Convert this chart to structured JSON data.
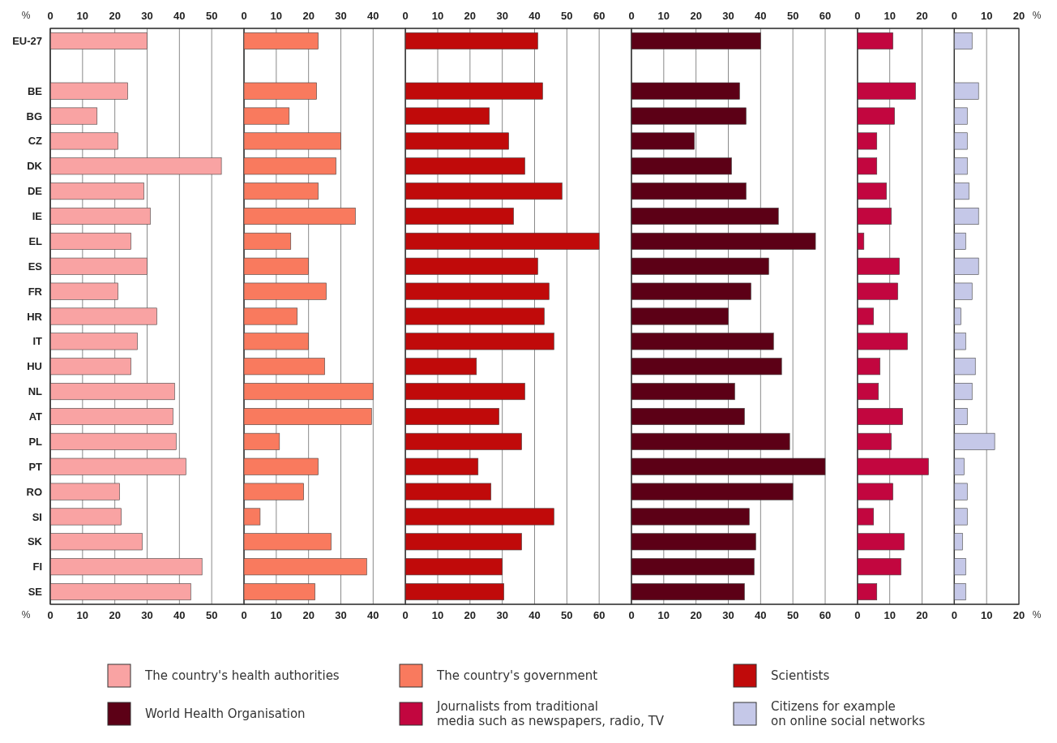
{
  "chart_data": [
    {
      "type": "bar",
      "orientation": "horizontal",
      "categories": [
        "EU-27",
        null,
        "BE",
        "BG",
        "CZ",
        "DK",
        "DE",
        "IE",
        "EL",
        "ES",
        "FR",
        "HR",
        "IT",
        "HU",
        "NL",
        "AT",
        "PL",
        "PT",
        "RO",
        "SI",
        "SK",
        "FI",
        "SE"
      ],
      "series": [
        {
          "name": "The country's health authorities",
          "color": "#f9a3a3",
          "values": [
            30,
            null,
            24,
            14.5,
            21,
            53,
            29,
            31,
            25,
            30,
            21,
            33,
            27,
            25,
            38.5,
            38,
            39,
            42,
            21.5,
            22,
            28.5,
            47,
            43.5
          ]
        }
      ],
      "xlim": [
        0,
        60
      ],
      "xticks": [
        0,
        10,
        20,
        30,
        40,
        50
      ],
      "x2lim": [
        0,
        60
      ],
      "x2ticks": [
        0,
        10,
        20,
        30,
        40,
        50
      ],
      "xlabel": "%",
      "x2label": "%",
      "grid": "x",
      "legend": "bottom"
    },
    {
      "type": "bar",
      "orientation": "horizontal",
      "series": [
        {
          "name": "The country's government",
          "color": "#f97a5e",
          "values": [
            23,
            null,
            22.5,
            14,
            30,
            28.5,
            23,
            34.5,
            14.5,
            20,
            25.5,
            16.5,
            20,
            25,
            40,
            39.5,
            11,
            23,
            18.5,
            5,
            27,
            38,
            22
          ]
        }
      ],
      "xlim": [
        0,
        50
      ],
      "xticks": [
        0,
        10,
        20,
        30,
        40
      ],
      "x2lim": [
        0,
        50
      ],
      "x2ticks": [
        0,
        10,
        20,
        30,
        40
      ],
      "grid": "x",
      "legend": "bottom",
      "tick_labels": "x"
    },
    {
      "type": "bar",
      "orientation": "horizontal",
      "series": [
        {
          "name": "Scientists",
          "color": "#c00a0a",
          "values": [
            41,
            null,
            42.5,
            26,
            32,
            37,
            48.5,
            33.5,
            60,
            41,
            44.5,
            43,
            46,
            22,
            37,
            29,
            36,
            22.5,
            26.5,
            46,
            36,
            30,
            30.5
          ]
        }
      ],
      "xlim": [
        0,
        70
      ],
      "xticks": [
        0,
        10,
        20,
        30,
        40,
        50,
        60
      ],
      "x2lim": [
        0,
        70
      ],
      "x2ticks": [
        0,
        10,
        20,
        30,
        40,
        50,
        60
      ],
      "grid": "x",
      "legend": "bottom",
      "tick_labels": "x"
    },
    {
      "type": "bar",
      "orientation": "horizontal",
      "series": [
        {
          "name": "World Health Organisation",
          "color": "#5c0016",
          "values": [
            40,
            null,
            33.5,
            35.5,
            19.5,
            31,
            35.5,
            45.5,
            57,
            42.5,
            37,
            30,
            44,
            46.5,
            32,
            35,
            49,
            60,
            50,
            36.5,
            38.5,
            38,
            35
          ]
        }
      ],
      "xlim": [
        0,
        70
      ],
      "xticks": [
        0,
        10,
        20,
        30,
        40,
        50,
        60
      ],
      "x2lim": [
        0,
        70
      ],
      "x2ticks": [
        0,
        10,
        20,
        30,
        40,
        50,
        60
      ],
      "grid": "x",
      "legend": "bottom",
      "tick_labels": "x"
    },
    {
      "type": "bar",
      "orientation": "horizontal",
      "series": [
        {
          "name": "Journalists from traditional media such as newspapers, radio, TV",
          "color": "#c2063f",
          "values": [
            11,
            null,
            18,
            11.5,
            6,
            6,
            9,
            10.5,
            2,
            13,
            12.5,
            5,
            15.5,
            7,
            6.5,
            14,
            10.5,
            22,
            11,
            5,
            14.5,
            13.5,
            6
          ]
        }
      ],
      "xlim": [
        0,
        30
      ],
      "xticks": [
        0,
        10,
        20
      ],
      "x2lim": [
        0,
        30
      ],
      "x2ticks": [
        0,
        10,
        20
      ],
      "grid": "x",
      "legend": "bottom",
      "tick_labels": "x"
    },
    {
      "type": "bar",
      "orientation": "horizontal",
      "series": [
        {
          "name": "Citizens for example on online social networks",
          "color": "#c5c8e8",
          "values": [
            5.5,
            null,
            7.5,
            4,
            4,
            4,
            4.5,
            7.5,
            3.5,
            7.5,
            5.5,
            2,
            3.5,
            6.5,
            5.5,
            4,
            12.5,
            3,
            4,
            4,
            2.5,
            3.5,
            3.5
          ]
        }
      ],
      "xlim": [
        0,
        20
      ],
      "xticks": [
        0,
        10,
        20
      ],
      "x2lim": [
        0,
        20
      ],
      "x2ticks": [
        0,
        10,
        20
      ],
      "xlabel": "%",
      "x2label": "%",
      "grid": "x",
      "legend": "bottom",
      "tick_labels": "x"
    }
  ]
}
